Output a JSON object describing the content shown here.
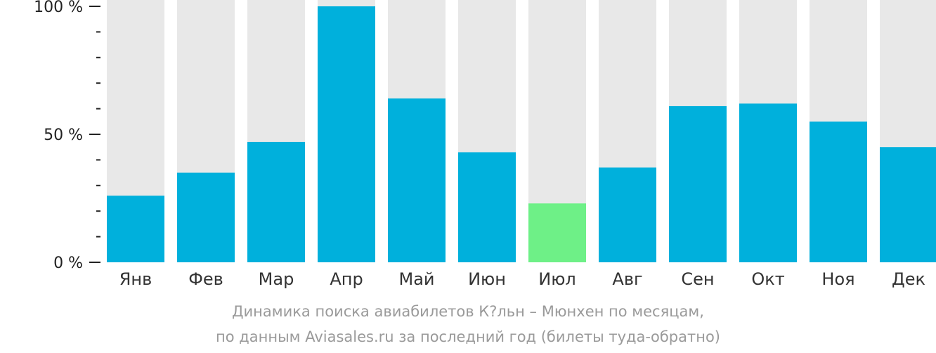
{
  "chart_data": {
    "type": "bar",
    "categories": [
      "Янв",
      "Фев",
      "Мар",
      "Апр",
      "Май",
      "Июн",
      "Июл",
      "Авг",
      "Сен",
      "Окт",
      "Ноя",
      "Дек"
    ],
    "values": [
      26,
      35,
      47,
      100,
      64,
      43,
      23,
      37,
      61,
      62,
      55,
      45
    ],
    "highlight_index": 6,
    "ylim": [
      0,
      100
    ],
    "yticks": [
      {
        "value": 0,
        "label": "0 %"
      },
      {
        "value": 50,
        "label": "50 %"
      },
      {
        "value": 100,
        "label": "100 %"
      }
    ],
    "ylabel": "",
    "xlabel": "",
    "grid": false,
    "colors": {
      "bar": "#00b0dc",
      "highlight": "#6ef087",
      "track": "#e8e8e8",
      "axis": "#222222"
    }
  },
  "caption": {
    "line1": "Динамика поиска авиабилетов К?льн – Мюнхен по месяцам,",
    "line2": "по данным Aviasales.ru за последний год (билеты туда-обратно)"
  }
}
